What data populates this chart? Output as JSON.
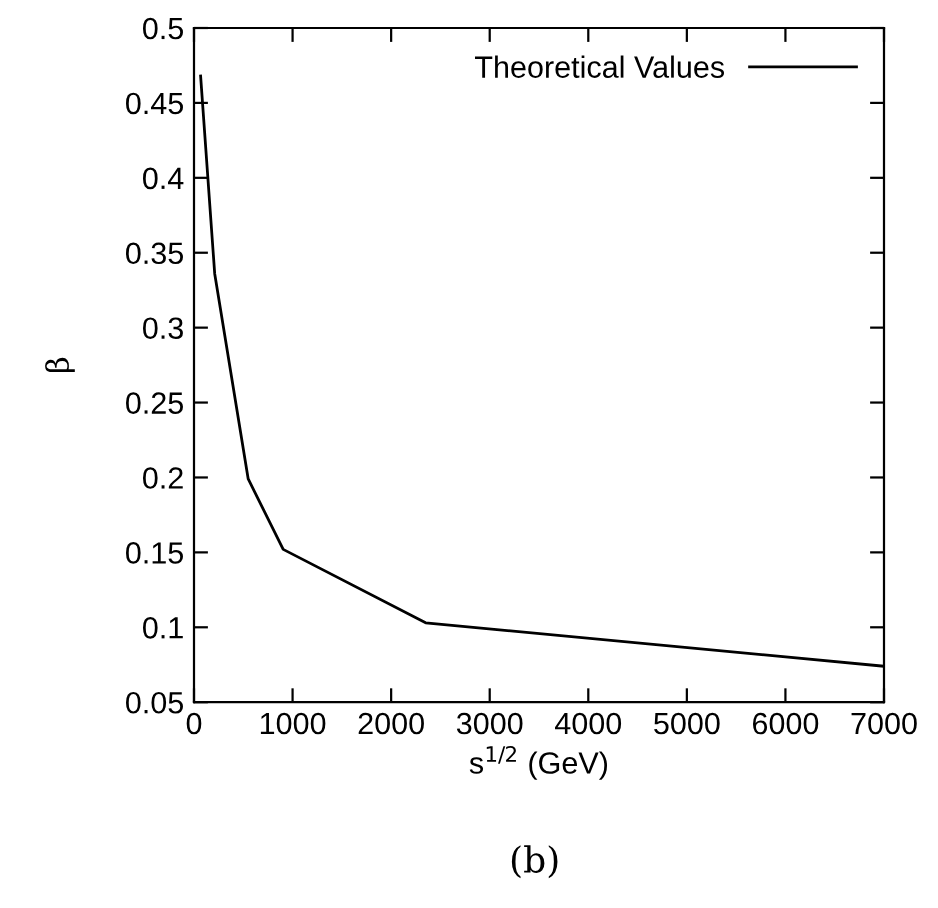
{
  "chart_data": {
    "type": "line",
    "xlabel": "s$^{1/2}$ (GeV)",
    "ylabel": "β",
    "annotations": [
      "(b)"
    ],
    "x": [
      67,
      210,
      550,
      905,
      2350,
      7000
    ],
    "series": [
      {
        "name": "Theoretical Values",
        "color": "#000000",
        "values": [
          0.468,
          0.336,
          0.199,
          0.152,
          0.103,
          0.074
        ]
      }
    ],
    "xlim": [
      0,
      7000
    ],
    "xticks": [
      0,
      1000,
      2000,
      3000,
      4000,
      5000,
      6000,
      7000
    ],
    "ylim": [
      0.05,
      0.5
    ],
    "yticks": [
      0.05,
      0.1,
      0.15,
      0.2,
      0.25,
      0.3,
      0.35,
      0.4,
      0.45,
      0.5
    ],
    "grid": false,
    "legend": "top right",
    "marker": "none",
    "line_style": "solid"
  }
}
